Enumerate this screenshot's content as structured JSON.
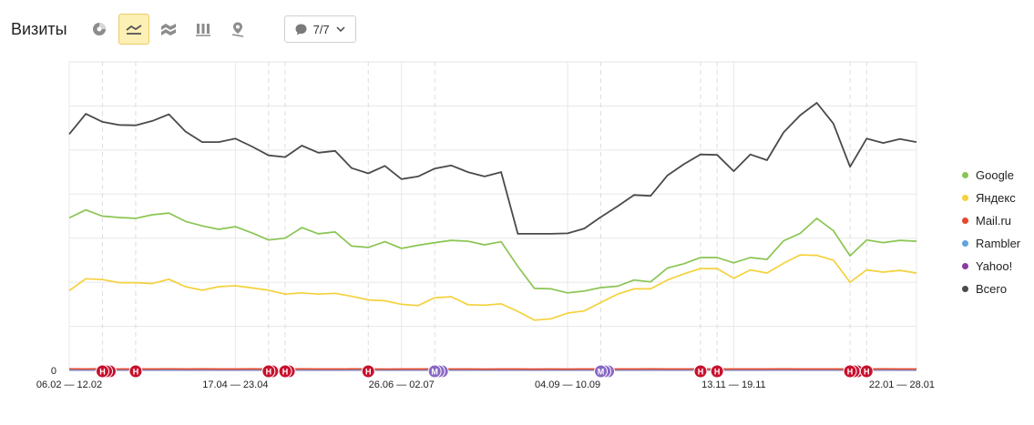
{
  "toolbar": {
    "title": "Визиты",
    "counter_label": "7/7",
    "icons": [
      "pie-chart-icon",
      "line-chart-icon",
      "area-chart-icon",
      "bar-chart-icon",
      "map-icon",
      "comment-icon",
      "chevron-down-icon"
    ]
  },
  "colors": {
    "Google": "#8ac552",
    "Яндекс": "#f5d13b",
    "Mail.ru": "#e8472c",
    "Rambler": "#5fa4e0",
    "Yahoo!": "#8a3aa5",
    "Всего": "#4a4a4a",
    "marker_red": "#c8102e",
    "marker_purple": "#8868c4",
    "active_button": "#fdf0b4"
  },
  "chart_data": {
    "type": "line",
    "grid": true,
    "ylim": [
      0,
      3500
    ],
    "y_tick_labels": [
      "0"
    ],
    "x_tick_labels": [
      "06.02 — 12.02",
      "17.04 — 23.04",
      "26.06 — 02.07",
      "04.09 — 10.09",
      "13.11 — 19.11",
      "22.01 — 28.01"
    ],
    "x_tick_index": [
      0,
      10,
      20,
      30,
      40,
      51
    ],
    "legend": "right",
    "series": [
      {
        "name": "Google",
        "values": [
          1730,
          1820,
          1750,
          1735,
          1725,
          1765,
          1785,
          1690,
          1640,
          1600,
          1630,
          1560,
          1480,
          1500,
          1620,
          1550,
          1570,
          1410,
          1395,
          1460,
          1385,
          1420,
          1450,
          1475,
          1465,
          1425,
          1460,
          1180,
          930,
          925,
          880,
          900,
          940,
          955,
          1025,
          1005,
          1160,
          1210,
          1280,
          1280,
          1220,
          1280,
          1260,
          1470,
          1555,
          1725,
          1585,
          1300,
          1480,
          1450,
          1475,
          1465
        ]
      },
      {
        "name": "Яндекс",
        "values": [
          905,
          1040,
          1030,
          995,
          995,
          985,
          1035,
          950,
          910,
          950,
          960,
          935,
          910,
          865,
          880,
          865,
          875,
          840,
          800,
          790,
          750,
          735,
          825,
          835,
          745,
          740,
          755,
          670,
          570,
          585,
          650,
          675,
          770,
          865,
          925,
          925,
          1025,
          1095,
          1155,
          1155,
          1045,
          1140,
          1105,
          1215,
          1310,
          1305,
          1250,
          1000,
          1140,
          1115,
          1135,
          1105
        ]
      },
      {
        "name": "Mail.ru",
        "values": [
          18,
          16,
          20,
          15,
          17,
          16,
          18,
          15,
          17,
          16,
          15,
          17,
          16,
          15,
          17,
          16,
          15,
          17,
          16,
          14,
          16,
          15,
          17,
          15,
          16,
          14,
          16,
          15,
          14,
          15,
          14,
          16,
          15,
          16,
          15,
          17,
          16,
          15,
          17,
          15,
          16,
          15,
          16,
          17,
          16,
          15,
          16,
          15,
          16,
          17,
          16,
          15
        ]
      },
      {
        "name": "Rambler",
        "values": [
          6,
          6,
          6,
          6,
          6,
          6,
          6,
          6,
          6,
          6,
          6,
          6,
          6,
          6,
          6,
          6,
          6,
          6,
          6,
          6,
          6,
          6,
          6,
          6,
          6,
          6,
          6,
          6,
          6,
          6,
          6,
          6,
          6,
          6,
          6,
          6,
          6,
          6,
          6,
          6,
          6,
          6,
          6,
          6,
          6,
          6,
          6,
          6,
          6,
          6,
          6,
          6
        ]
      },
      {
        "name": "Yahoo!",
        "values": [
          3,
          3,
          3,
          3,
          3,
          3,
          3,
          3,
          3,
          3,
          3,
          3,
          3,
          3,
          3,
          3,
          3,
          3,
          3,
          3,
          3,
          3,
          3,
          3,
          3,
          3,
          3,
          3,
          3,
          3,
          3,
          3,
          3,
          3,
          3,
          3,
          3,
          3,
          3,
          3,
          3,
          3,
          3,
          3,
          3,
          3,
          3,
          3,
          3,
          3,
          3,
          3
        ]
      },
      {
        "name": "Всего",
        "values": [
          2680,
          2910,
          2820,
          2785,
          2780,
          2830,
          2905,
          2710,
          2590,
          2590,
          2630,
          2540,
          2440,
          2420,
          2550,
          2470,
          2490,
          2295,
          2235,
          2320,
          2170,
          2200,
          2290,
          2325,
          2250,
          2200,
          2250,
          1550,
          1550,
          1550,
          1555,
          1610,
          1740,
          1860,
          1990,
          1980,
          2210,
          2340,
          2450,
          2445,
          2260,
          2450,
          2385,
          2700,
          2895,
          3035,
          2800,
          2310,
          2630,
          2580,
          2625,
          2590
        ]
      }
    ],
    "annotations": [
      {
        "label": "Н",
        "index": 2,
        "count": 3,
        "color": "red"
      },
      {
        "label": "Н",
        "index": 4,
        "count": 1,
        "color": "red"
      },
      {
        "label": "Н",
        "index": 12,
        "count": 2,
        "color": "red"
      },
      {
        "label": "Н",
        "index": 13,
        "count": 2,
        "color": "red"
      },
      {
        "label": "Н",
        "index": 18,
        "count": 1,
        "color": "red"
      },
      {
        "label": "М",
        "index": 22,
        "count": 3,
        "color": "purple"
      },
      {
        "label": "М",
        "index": 32,
        "count": 3,
        "color": "purple"
      },
      {
        "label": "Н",
        "index": 38,
        "count": 1,
        "color": "red"
      },
      {
        "label": "Н",
        "index": 39,
        "count": 1,
        "color": "red"
      },
      {
        "label": "Н",
        "index": 47,
        "count": 3,
        "color": "red"
      },
      {
        "label": "Н",
        "index": 48,
        "count": 1,
        "color": "red"
      }
    ]
  }
}
